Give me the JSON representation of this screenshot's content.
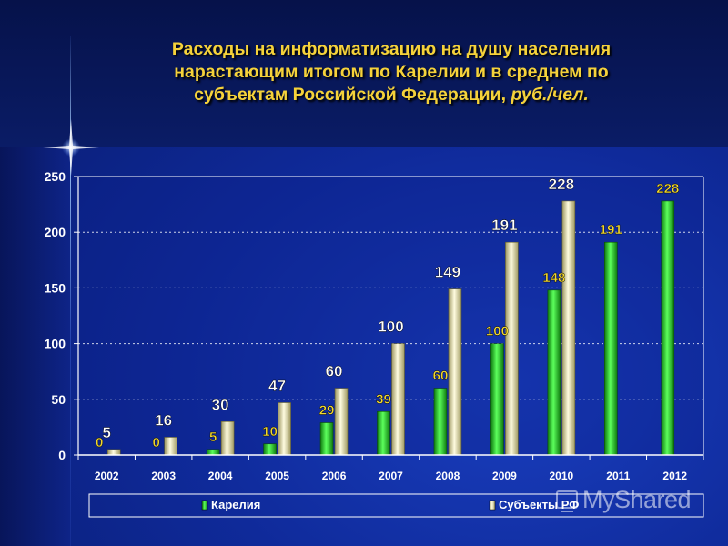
{
  "title": {
    "line1": "Расходы на информатизацию на душу населения",
    "line2": "нарастающим итогом по Карелии и в среднем по",
    "line3": "субъектам Российской Федерации,",
    "unit": "руб./чел."
  },
  "watermark": "MyShared",
  "colors": {
    "karelia": "#22cc22",
    "subjects": "#e8e4a0",
    "karelia_label": "#f2d830",
    "subjects_label": "#ffffff",
    "axis_text": "#ffffff",
    "grid": "#ffffff"
  },
  "chart_data": {
    "type": "bar",
    "categories": [
      "2002",
      "2003",
      "2004",
      "2005",
      "2006",
      "2007",
      "2008",
      "2009",
      "2010",
      "2011",
      "2012"
    ],
    "series": [
      {
        "name": "Карелия",
        "values": [
          0,
          0,
          5,
          10,
          29,
          39,
          60,
          100,
          148,
          191,
          228
        ]
      },
      {
        "name": "Субъекты РФ",
        "values": [
          5,
          16,
          30,
          47,
          60,
          100,
          149,
          191,
          228,
          null,
          null
        ]
      }
    ],
    "yticks": [
      "0",
      "50",
      "100",
      "150",
      "200",
      "250"
    ],
    "ylim": [
      0,
      250
    ],
    "grid": true,
    "legend_position": "bottom"
  }
}
